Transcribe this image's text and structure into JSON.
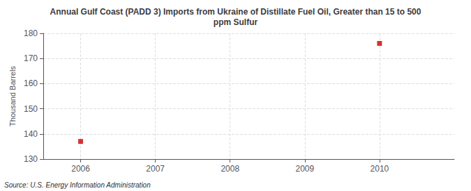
{
  "chart_data": {
    "type": "scatter",
    "title": "Annual Gulf Coast (PADD 3) Imports from Ukraine of Distillate Fuel Oil, Greater than 15 to 500\nppm Sulfur",
    "ylabel": "Thousand Barrels",
    "source": "Source: U.S. Energy Information Administration",
    "x": [
      2006,
      2010
    ],
    "values": [
      137,
      176
    ],
    "color": "#cc0000",
    "marker": "square",
    "xlim": [
      2005.5,
      2011.0
    ],
    "xticks": [
      2006,
      2007,
      2008,
      2009,
      2010
    ],
    "ylim": [
      130,
      180
    ],
    "yticks": [
      130,
      140,
      150,
      160,
      170,
      180
    ],
    "grid": true
  }
}
